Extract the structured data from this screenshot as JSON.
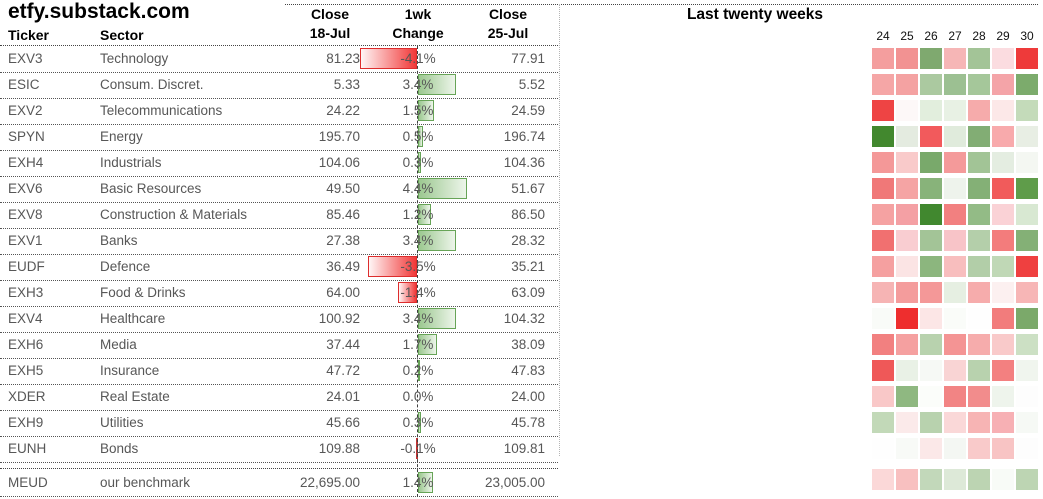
{
  "title": "etfy.substack.com",
  "table_headers": {
    "ticker": "Ticker",
    "sector": "Sector",
    "close1_line1": "Close",
    "close1_line2": "18-Jul",
    "change_line1": "1wk",
    "change_line2": "Change",
    "close2_line1": "Close",
    "close2_line2": "25-Jul"
  },
  "heatmap_title": "Last twenty weeks",
  "colors": {
    "bar_positive_fill": "#9cc890",
    "bar_positive_border": "#67a457",
    "bar_negative_fill": "#f13737",
    "bar_negative_border": "#dd2d2d",
    "data_text": "#575757",
    "header_text": "#000000"
  },
  "chart_data": {
    "type": "table",
    "columns": [
      "Ticker",
      "Sector",
      "Close 18-Jul",
      "1wk Change",
      "Close 25-Jul"
    ],
    "heatmap_title": "Last twenty weeks",
    "week_labels": [
      "24",
      "25",
      "26",
      "27",
      "28",
      "29",
      "30"
    ],
    "rows": [
      {
        "ticker": "EXV3",
        "sector": "Technology",
        "close_18jul": "81.23",
        "change_pct": -4.1,
        "change_label": "-4.1%",
        "close_25jul": "77.91",
        "benchmark": false,
        "heat": [
          "#f49e9e",
          "#f29292",
          "#7fa96f",
          "#f6b6b6",
          "#a3c497",
          "#fbdce0",
          "#ee3a3a"
        ]
      },
      {
        "ticker": "ESIC",
        "sector": "Consum. Discret.",
        "close_18jul": "5.33",
        "change_pct": 3.4,
        "change_label": "3.4%",
        "close_25jul": "5.52",
        "benchmark": false,
        "heat": [
          "#f5a6a6",
          "#f4a2a2",
          "#abc9a0",
          "#9cc092",
          "#a5c79a",
          "#f4a4a8",
          "#7cab6c"
        ]
      },
      {
        "ticker": "EXV2",
        "sector": "Telecommunications",
        "close_18jul": "24.22",
        "change_pct": 1.5,
        "change_label": "1.5%",
        "close_25jul": "24.59",
        "benchmark": false,
        "heat": [
          "#ee4444",
          "#fdf8f8",
          "#e2eedd",
          "#e8f1e4",
          "#f6abab",
          "#fce8e8",
          "#c4dbba"
        ]
      },
      {
        "ticker": "SPYN",
        "sector": "Energy",
        "close_18jul": "195.70",
        "change_pct": 0.5,
        "change_label": "0.5%",
        "close_25jul": "196.74",
        "benchmark": false,
        "heat": [
          "#42882e",
          "#e4ebe0",
          "#f25a5c",
          "#e0ebdc",
          "#82ad74",
          "#f8aaac",
          "#e8eee4"
        ]
      },
      {
        "ticker": "EXH4",
        "sector": "Industrials",
        "close_18jul": "104.06",
        "change_pct": 0.3,
        "change_label": "0.3%",
        "close_25jul": "104.36",
        "benchmark": false,
        "heat": [
          "#f49898",
          "#f9caca",
          "#79a96b",
          "#f49a9a",
          "#a2c496",
          "#e4ede1",
          "#f4f7f2"
        ]
      },
      {
        "ticker": "EXV6",
        "sector": "Basic Resources",
        "close_18jul": "49.50",
        "change_pct": 4.4,
        "change_label": "4.4%",
        "close_25jul": "51.67",
        "benchmark": false,
        "heat": [
          "#f07878",
          "#f5a4a4",
          "#88b37a",
          "#eef3ec",
          "#84b076",
          "#f15b5b",
          "#5f9c4a"
        ]
      },
      {
        "ticker": "EXV8",
        "sector": "Construction & Materials",
        "close_18jul": "85.46",
        "change_pct": 1.2,
        "change_label": "1.2%",
        "close_25jul": "86.50",
        "benchmark": false,
        "heat": [
          "#f5a2a2",
          "#f4a0a4",
          "#41882f",
          "#f28080",
          "#93bb86",
          "#fad2d6",
          "#d8e8d2"
        ]
      },
      {
        "ticker": "EXV1",
        "sector": "Banks",
        "close_18jul": "27.38",
        "change_pct": 3.4,
        "change_label": "3.4%",
        "close_25jul": "28.32",
        "benchmark": false,
        "heat": [
          "#f17070",
          "#f9cdd1",
          "#a3c497",
          "#f8c4c8",
          "#b4cfaa",
          "#f37c7c",
          "#84b076"
        ]
      },
      {
        "ticker": "EUDF",
        "sector": "Defence",
        "close_18jul": "36.49",
        "change_pct": -3.5,
        "change_label": "-3.5%",
        "close_25jul": "35.21",
        "benchmark": false,
        "heat": [
          "#f5a0a0",
          "#fbe4e4",
          "#8cb67e",
          "#f8bebe",
          "#b2cea8",
          "#c0d8b6",
          "#ef4040"
        ]
      },
      {
        "ticker": "EXH3",
        "sector": "Food & Drinks",
        "close_18jul": "64.00",
        "change_pct": -1.4,
        "change_label": "-1.4%",
        "close_25jul": "63.09",
        "benchmark": false,
        "heat": [
          "#f6b4b4",
          "#f49c9c",
          "#f49898",
          "#e6efe2",
          "#f6acac",
          "#fcf0f0",
          "#f7b6b6"
        ]
      },
      {
        "ticker": "EXV4",
        "sector": "Healthcare",
        "close_18jul": "100.92",
        "change_pct": 3.4,
        "change_label": "3.4%",
        "close_25jul": "104.32",
        "benchmark": false,
        "heat": [
          "#f9fbf8",
          "#ee2e2e",
          "#fce6e6",
          "#fafcf9",
          "#fefefe",
          "#f27c7c",
          "#7ba96a"
        ]
      },
      {
        "ticker": "EXH6",
        "sector": "Media",
        "close_18jul": "37.44",
        "change_pct": 1.7,
        "change_label": "1.7%",
        "close_25jul": "38.09",
        "benchmark": false,
        "heat": [
          "#f28080",
          "#f5a0a0",
          "#b8d2ae",
          "#f49494",
          "#f6acac",
          "#f9caca",
          "#cce0c4"
        ]
      },
      {
        "ticker": "EXH5",
        "sector": "Insurance",
        "close_18jul": "47.72",
        "change_pct": 0.2,
        "change_label": "0.2%",
        "close_25jul": "47.83",
        "benchmark": false,
        "heat": [
          "#ef5858",
          "#e9f1e6",
          "#f6f9f5",
          "#f9d4d4",
          "#b8d2ae",
          "#f38080",
          "#f0f5ee"
        ]
      },
      {
        "ticker": "XDER",
        "sector": "Real Estate",
        "close_18jul": "24.01",
        "change_pct": 0.0,
        "change_label": "0.0%",
        "close_25jul": "24.00",
        "benchmark": false,
        "heat": [
          "#f9c8c8",
          "#8fb881",
          "#fbfdfa",
          "#f28484",
          "#f28c8c",
          "#eef4ec",
          "#fdfdfd"
        ]
      },
      {
        "ticker": "EXH9",
        "sector": "Utilities",
        "close_18jul": "45.66",
        "change_pct": 0.3,
        "change_label": "0.3%",
        "close_25jul": "45.78",
        "benchmark": false,
        "heat": [
          "#c2d9b8",
          "#fbeaea",
          "#b8d2ae",
          "#fad8d8",
          "#f7b4b4",
          "#f7b0b4",
          "#f6f9f5"
        ]
      },
      {
        "ticker": "EUNH",
        "sector": "Bonds",
        "close_18jul": "109.88",
        "change_pct": -0.1,
        "change_label": "-0.1%",
        "close_25jul": "109.81",
        "benchmark": false,
        "heat": [
          "#fefefe",
          "#f8faf7",
          "#fbe8e8",
          "#f4f7f3",
          "#f9caca",
          "#f8c4c4",
          "#fdfdfd"
        ]
      },
      {
        "ticker": "MEUD",
        "sector": "our benchmark",
        "close_18jul": "22,695.00",
        "change_pct": 1.4,
        "change_label": "1.4%",
        "close_25jul": "23,005.00",
        "benchmark": true,
        "heat": [
          "#fbd8d8",
          "#f8c0c0",
          "#c2d8ba",
          "#dde9d8",
          "#bcd4b2",
          "#f8fbf7",
          "#bdd5b3"
        ]
      }
    ]
  }
}
